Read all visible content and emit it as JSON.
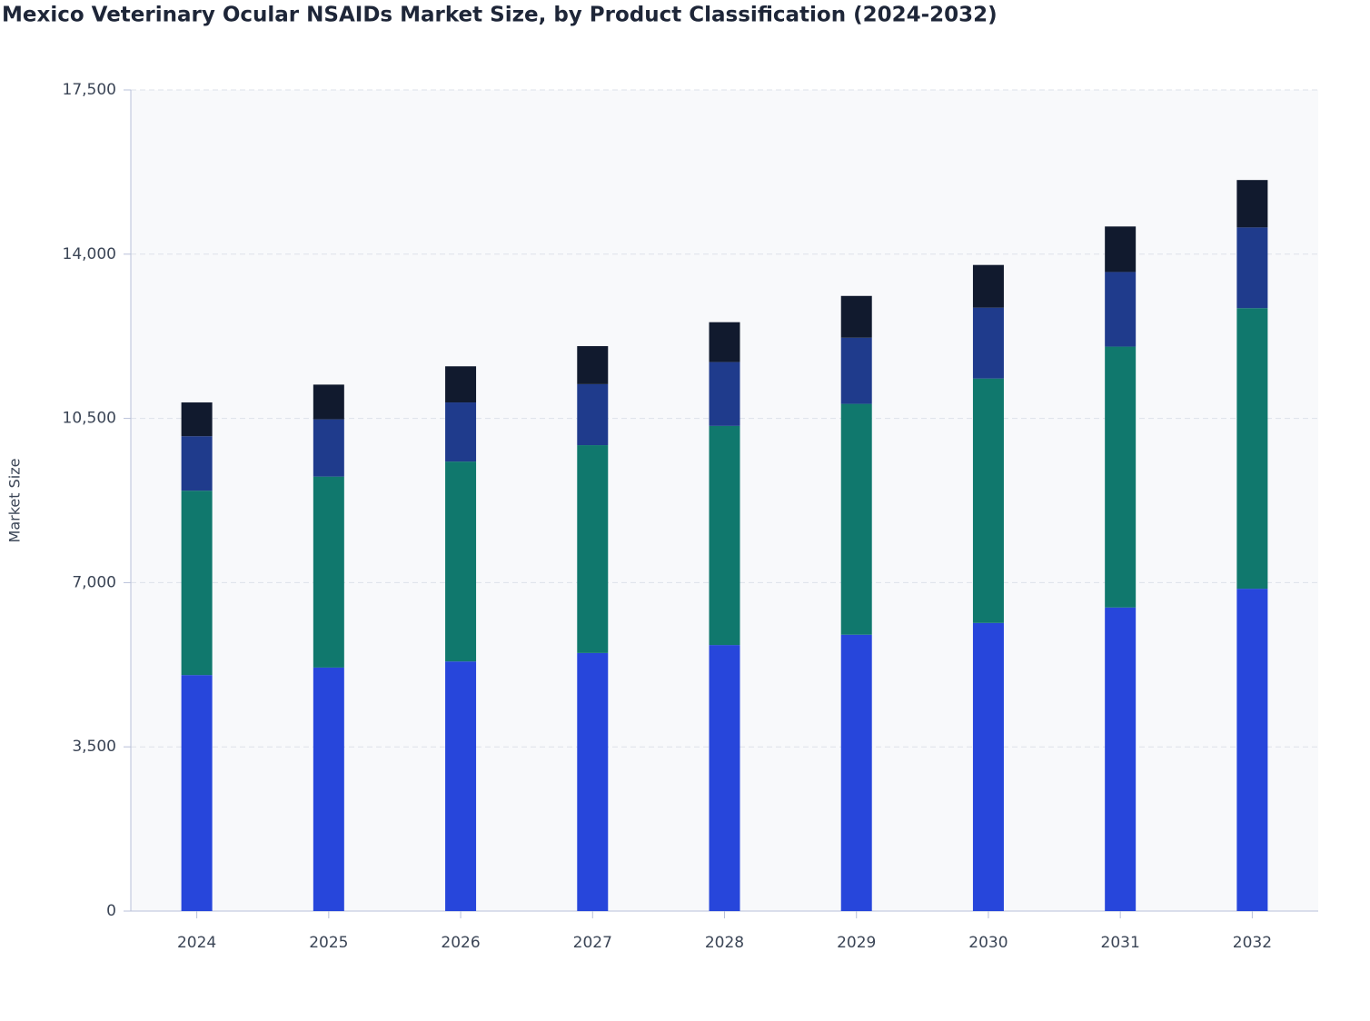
{
  "chart_data": {
    "type": "stacked-bar",
    "title": "Mexico Veterinary Ocular NSAIDs Market Size, by Product Classification (2024-2032)",
    "y_label": "Market Size",
    "categories": [
      "2024",
      "2025",
      "2026",
      "2027",
      "2028",
      "2029",
      "2030",
      "2031",
      "2032"
    ],
    "series": [
      {
        "color": "#2746db",
        "values": [
          5030,
          5190,
          5320,
          5500,
          5670,
          5890,
          6140,
          6470,
          6870
        ]
      },
      {
        "color": "#10786d",
        "values": [
          3930,
          4070,
          4260,
          4430,
          4670,
          4920,
          5210,
          5560,
          5980
        ]
      },
      {
        "color": "#1f3b8c",
        "values": [
          1160,
          1220,
          1260,
          1300,
          1360,
          1410,
          1510,
          1590,
          1720
        ]
      },
      {
        "color": "#111a2e",
        "values": [
          720,
          740,
          770,
          810,
          850,
          890,
          910,
          970,
          1010
        ]
      }
    ],
    "ylim": [
      0,
      17500
    ],
    "yticks": [
      0,
      {
        "value": 3500,
        "label": "3,500"
      },
      {
        "value": 7000,
        "label": "7,000"
      },
      {
        "value": 10500,
        "label": "10,500"
      },
      {
        "value": 14000,
        "label": "14,000"
      },
      {
        "value": 17500,
        "label": "17,500"
      }
    ],
    "grid": true
  }
}
